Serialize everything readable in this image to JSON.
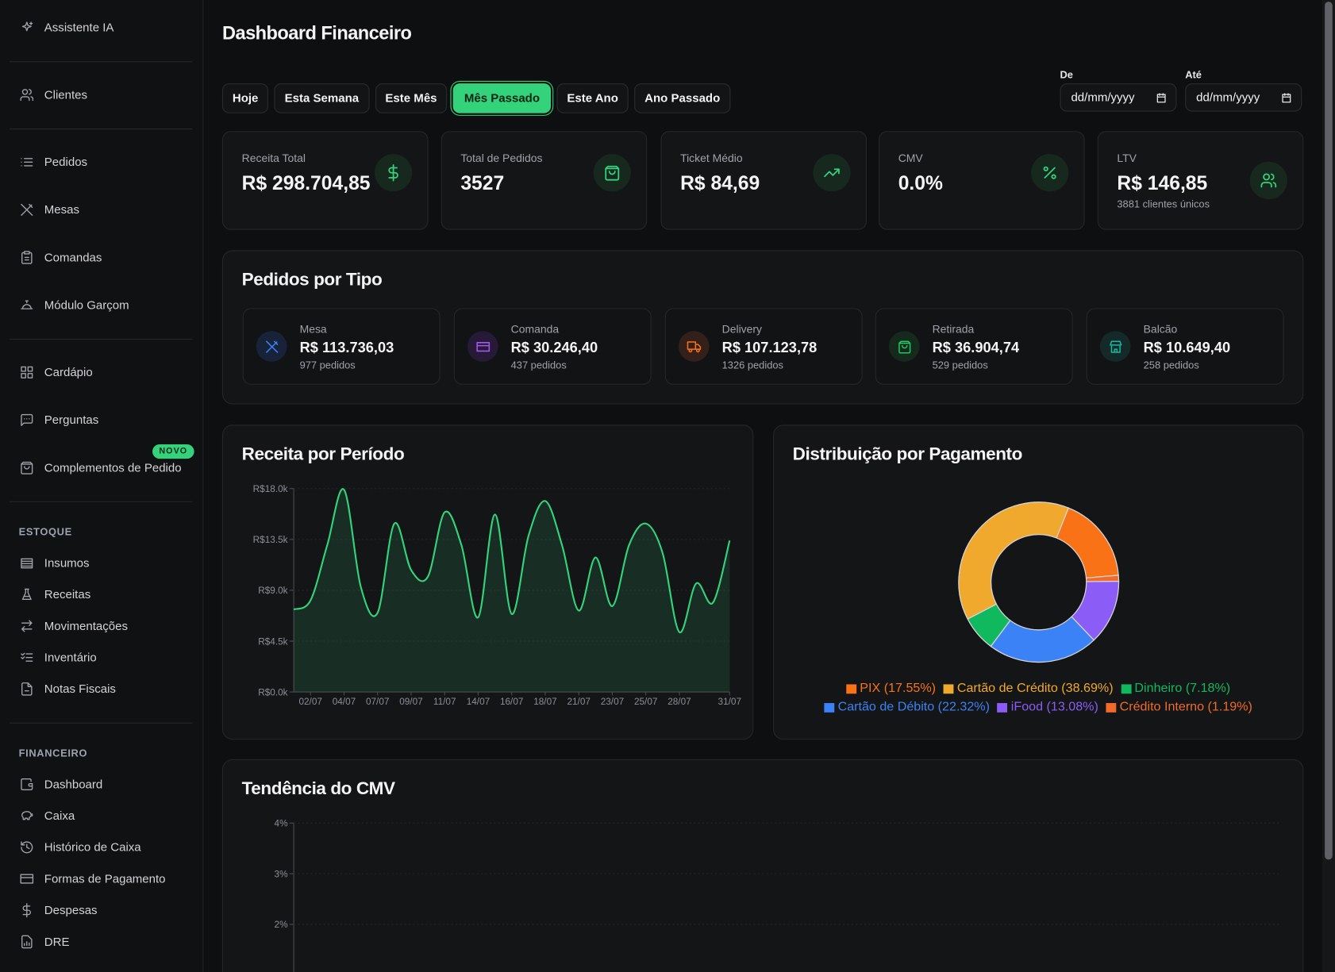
{
  "sidebar": {
    "groups": [
      {
        "items": [
          "Assistente IA"
        ]
      },
      {
        "items": [
          "Clientes"
        ]
      },
      {
        "items": [
          "Pedidos",
          "Mesas",
          "Comandas",
          "Módulo Garçom"
        ]
      },
      {
        "items": [
          "Cardápio",
          "Perguntas",
          "Complementos de Pedido"
        ],
        "badge": "NOVO"
      },
      {
        "heading": "ESTOQUE",
        "items": [
          "Insumos",
          "Receitas",
          "Movimentações",
          "Inventário",
          "Notas Fiscais"
        ]
      },
      {
        "heading": "FINANCEIRO",
        "items": [
          "Dashboard",
          "Caixa",
          "Histórico de Caixa",
          "Formas de Pagamento",
          "Despesas",
          "DRE"
        ]
      }
    ]
  },
  "header": {
    "title": "Dashboard Financeiro"
  },
  "filters": {
    "buttons": [
      "Hoje",
      "Esta Semana",
      "Este Mês",
      "Mês Passado",
      "Este Ano",
      "Ano Passado"
    ],
    "selected": 3,
    "date_from": {
      "label": "De",
      "placeholder": "dd/mm/yyyy"
    },
    "date_to": {
      "label": "Até",
      "placeholder": "dd/mm/yyyy"
    }
  },
  "kpis": [
    {
      "label": "Receita Total",
      "value": "R$ 298.704,85"
    },
    {
      "label": "Total de Pedidos",
      "value": "3527"
    },
    {
      "label": "Ticket Médio",
      "value": "R$ 84,69"
    },
    {
      "label": "CMV",
      "value": "0.0%"
    },
    {
      "label": "LTV",
      "value": "R$ 146,85",
      "note": "3881 clientes únicos"
    }
  ],
  "orders_by_type": {
    "title": "Pedidos por Tipo",
    "items": [
      {
        "label": "Mesa",
        "value": "R$ 113.736,03",
        "count": "977 pedidos"
      },
      {
        "label": "Comanda",
        "value": "R$ 30.246,40",
        "count": "437 pedidos"
      },
      {
        "label": "Delivery",
        "value": "R$ 107.123,78",
        "count": "1326 pedidos"
      },
      {
        "label": "Retirada",
        "value": "R$ 36.904,74",
        "count": "529 pedidos"
      },
      {
        "label": "Balcão",
        "value": "R$ 10.649,40",
        "count": "258 pedidos"
      }
    ]
  },
  "chart_data": [
    {
      "type": "line",
      "title": "Receita por Período",
      "categories": [
        null,
        "02/07",
        null,
        "04/07",
        null,
        "07/07",
        null,
        "09/07",
        null,
        "11/07",
        null,
        "14/07",
        null,
        "16/07",
        null,
        "18/07",
        null,
        "21/07",
        null,
        "23/07",
        null,
        "25/07",
        null,
        "28/07",
        null,
        null,
        "31/07"
      ],
      "values": [
        7300,
        8100,
        13000,
        17900,
        9300,
        7000,
        14900,
        10800,
        10200,
        15900,
        13000,
        6600,
        15700,
        6900,
        13800,
        16900,
        13000,
        7200,
        11900,
        7600,
        13000,
        14900,
        12300,
        5300,
        9600,
        7900,
        13400
      ],
      "color": "#34d27a",
      "fill": true,
      "ylim": [
        0,
        18000
      ],
      "yticks": [
        {
          "value": 0,
          "label": "R$0.0k"
        },
        {
          "value": 4500,
          "label": "R$4.5k"
        },
        {
          "value": 9000,
          "label": "R$9.0k"
        },
        {
          "value": 13500,
          "label": "R$13.5k"
        },
        {
          "value": 18000,
          "label": "R$18.0k"
        }
      ],
      "grid": true
    },
    {
      "type": "pie",
      "title": "Distribuição por Pagamento",
      "donut": true,
      "categories": [
        "PIX (17.55%)",
        "Cartão de Crédito (38.69%)",
        "Dinheiro (7.18%)",
        "Cartão de Débito (22.32%)",
        "iFood (13.08%)",
        "Crédito Interno (1.19%)"
      ],
      "values": [
        17.55,
        38.69,
        7.18,
        22.32,
        13.08,
        1.19
      ],
      "colors": [
        "#f97316",
        "#f0a92d",
        "#10b95e",
        "#3b82f6",
        "#8b5cf6",
        "#f26b2b"
      ]
    },
    {
      "type": "line",
      "title": "Tendência do CMV",
      "ylim": [
        0,
        4
      ],
      "yticks": [
        {
          "value": 2,
          "label": "2%"
        },
        {
          "value": 3,
          "label": "3%"
        },
        {
          "value": 4,
          "label": "4%"
        }
      ],
      "grid": true
    }
  ]
}
